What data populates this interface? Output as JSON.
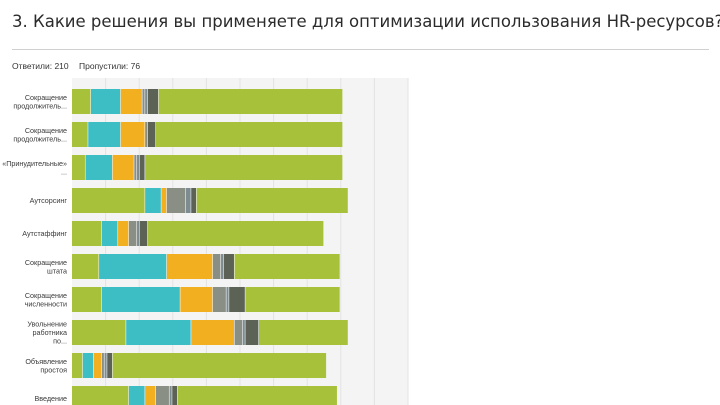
{
  "title": "3. Какие решения вы применяете для оптимизации использования HR-ресурсов?",
  "stats": {
    "answered": "Ответили: 210",
    "skipped": "Пропустили: 76"
  },
  "colors": [
    "#a8c13a",
    "#3dbdc4",
    "#f2b020",
    "#8a8f86",
    "#7c8c90",
    "#5c6356",
    "#a8c13a"
  ],
  "chart_data": {
    "type": "bar",
    "orientation": "horizontal",
    "stacked": true,
    "grid": true,
    "categories": [
      [
        "Сокращение",
        "продолжитель..."
      ],
      [
        "Сокращение",
        "продолжитель..."
      ],
      [
        "«Принудительные»",
        "..."
      ],
      [
        "Аутсорсинг"
      ],
      [
        "Аутстаффинг"
      ],
      [
        "Сокращение",
        "штата"
      ],
      [
        "Сокращение",
        "численности"
      ],
      [
        "Увольнение",
        "работника",
        "по..."
      ],
      [
        "Объявление",
        "простоя"
      ],
      [
        "Введение"
      ]
    ],
    "series": [
      {
        "values": [
          7,
          6,
          5,
          27,
          11,
          10,
          11,
          20,
          4,
          21
        ]
      },
      {
        "values": [
          11,
          12,
          10,
          6,
          6,
          25,
          29,
          24,
          4,
          6
        ]
      },
      {
        "values": [
          8,
          9,
          8,
          2,
          4,
          17,
          12,
          16,
          3,
          4
        ]
      },
      {
        "values": [
          1,
          1,
          1,
          7,
          3,
          3,
          5,
          3,
          1,
          5
        ]
      },
      {
        "values": [
          1,
          0,
          1,
          2,
          1,
          1,
          1,
          1,
          1,
          1
        ]
      },
      {
        "values": [
          4,
          3,
          2,
          2,
          3,
          4,
          6,
          5,
          2,
          2
        ]
      },
      {
        "values": [
          68,
          69,
          73,
          56,
          65,
          39,
          35,
          33,
          79,
          59
        ]
      }
    ],
    "xlim": [
      0,
      124
    ]
  }
}
